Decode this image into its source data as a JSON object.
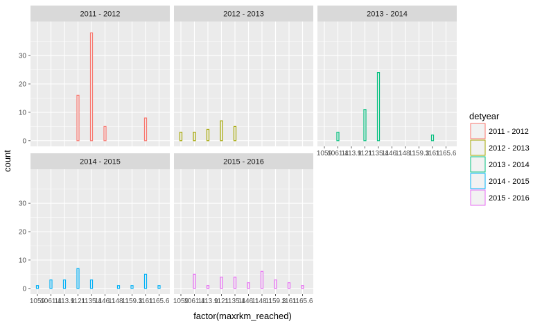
{
  "chart_data": {
    "type": "bar",
    "subtype": "faceted-histogram",
    "xlabel": "factor(maxrkm_reached)",
    "ylabel": "count",
    "x_tick_labels": [
      "1059",
      "1061",
      "1113.9",
      "1121",
      "1135",
      "1146",
      "1148",
      "1159.3",
      "1161",
      "1165.6"
    ],
    "x_tick_labels_displayed": [
      "1059",
      "1061.4",
      "1113.9",
      "1121",
      "1135.4",
      "1146.1",
      "1148.1",
      "1159.3",
      "1161",
      "1165.6"
    ],
    "categories": [
      "1059",
      "1061.4",
      "1113.9",
      "1121",
      "1135.4",
      "1146.1",
      "1148.1",
      "1159.3",
      "1161",
      "1165.6"
    ],
    "ylim": [
      0,
      40
    ],
    "y_ticks": [
      0,
      10,
      20,
      30
    ],
    "grid": true,
    "legend": {
      "title": "detyear",
      "position": "right",
      "entries": [
        "2011 - 2012",
        "2012 - 2013",
        "2013 - 2014",
        "2014 - 2015",
        "2015 - 2016"
      ]
    },
    "colors": [
      "#F8766D",
      "#A3A500",
      "#00BF7D",
      "#00B0F6",
      "#E76BF3"
    ],
    "series": [
      {
        "name": "2011 - 2012",
        "values": [
          0,
          0,
          0,
          16,
          38,
          5,
          0,
          0,
          8,
          0
        ]
      },
      {
        "name": "2012 - 2013",
        "values": [
          3,
          3,
          4,
          7,
          5,
          0,
          0,
          0,
          0,
          0
        ]
      },
      {
        "name": "2013 - 2014",
        "values": [
          0,
          3,
          0,
          11,
          24,
          0,
          0,
          0,
          2,
          0
        ]
      },
      {
        "name": "2014 - 2015",
        "values": [
          1,
          3,
          3,
          7,
          3,
          0,
          1,
          1,
          5,
          1
        ]
      },
      {
        "name": "2015 - 2016",
        "values": [
          0,
          5,
          1,
          4,
          4,
          2,
          6,
          3,
          2,
          1
        ]
      }
    ]
  }
}
